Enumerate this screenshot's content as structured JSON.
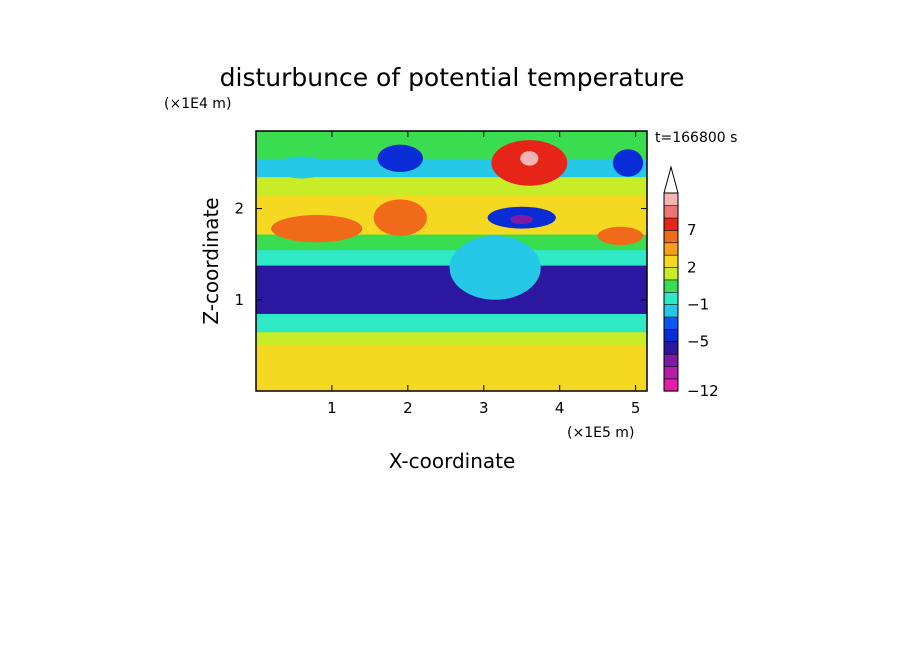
{
  "chart_data": {
    "type": "heatmap",
    "title": "disturbunce of potential temperature",
    "xlabel": "X-coordinate",
    "ylabel": "Z-coordinate",
    "x_unit": "(×1E5 m)",
    "y_unit": "(×1E4 m)",
    "time_label": "t=166800 s",
    "xlim": [
      0,
      5.15
    ],
    "ylim": [
      0,
      2.85
    ],
    "x_ticks": [
      1,
      2,
      3,
      4,
      5
    ],
    "y_ticks": [
      1,
      2
    ],
    "x_tick_labels": [
      "1",
      "2",
      "3",
      "4",
      "5"
    ],
    "y_tick_labels": [
      "1",
      "2"
    ],
    "colorbar": {
      "levels": [
        -12,
        -11,
        -9,
        -7,
        -5,
        -4,
        -3,
        -1,
        0,
        1,
        2,
        4,
        5,
        7,
        8,
        9
      ],
      "colors": [
        "#e61ba8",
        "#b51ea6",
        "#7e1ba4",
        "#2c17a0",
        "#0a2cd6",
        "#0a57ee",
        "#26c8e8",
        "#2ee8c6",
        "#3adc50",
        "#c8ec28",
        "#f5d820",
        "#f5a01c",
        "#f06a1a",
        "#e62418",
        "#eb7570",
        "#f4b4b4"
      ],
      "extend_max": true,
      "labeled_levels": [
        -12,
        -5,
        -1,
        2,
        7
      ],
      "tick_labels": [
        "−12",
        "−5",
        "−1",
        "2",
        "7"
      ]
    },
    "bands": [
      {
        "z0": 0.0,
        "z1": 0.18,
        "value": 2
      },
      {
        "z0": 0.18,
        "z1": 0.5,
        "value": 3
      },
      {
        "z0": 0.5,
        "z1": 0.65,
        "value": 1
      },
      {
        "z0": 0.65,
        "z1": 0.85,
        "value": -1
      },
      {
        "z0": 0.85,
        "z1": 1.38,
        "value": -6
      },
      {
        "z0": 1.38,
        "z1": 1.55,
        "value": -1
      },
      {
        "z0": 1.55,
        "z1": 1.72,
        "value": 0.5
      },
      {
        "z0": 1.72,
        "z1": 2.15,
        "value": 3
      },
      {
        "z0": 2.15,
        "z1": 2.35,
        "value": 1.5
      },
      {
        "z0": 2.35,
        "z1": 2.55,
        "value": -1.5
      },
      {
        "z0": 2.55,
        "z1": 2.85,
        "value": 0.5
      }
    ],
    "features": [
      {
        "x": 3.6,
        "z": 2.5,
        "rx": 0.5,
        "rz": 0.25,
        "value": 7
      },
      {
        "x": 3.6,
        "z": 2.55,
        "rx": 0.12,
        "rz": 0.08,
        "value": 9
      },
      {
        "x": 3.5,
        "z": 1.9,
        "rx": 0.45,
        "rz": 0.12,
        "value": -5
      },
      {
        "x": 3.5,
        "z": 1.88,
        "rx": 0.15,
        "rz": 0.05,
        "value": -9
      },
      {
        "x": 0.8,
        "z": 1.78,
        "rx": 0.6,
        "rz": 0.15,
        "value": 5
      },
      {
        "x": 1.9,
        "z": 1.9,
        "rx": 0.35,
        "rz": 0.2,
        "value": 5
      },
      {
        "x": 4.8,
        "z": 1.7,
        "rx": 0.3,
        "rz": 0.1,
        "value": 5
      },
      {
        "x": 3.15,
        "z": 1.35,
        "rx": 0.6,
        "rz": 0.35,
        "value": -1.5
      },
      {
        "x": 1.9,
        "z": 2.55,
        "rx": 0.3,
        "rz": 0.15,
        "value": -5
      },
      {
        "x": 0.6,
        "z": 2.45,
        "rx": 0.35,
        "rz": 0.12,
        "value": -2
      },
      {
        "x": 4.9,
        "z": 2.5,
        "rx": 0.2,
        "rz": 0.15,
        "value": -5
      }
    ]
  }
}
